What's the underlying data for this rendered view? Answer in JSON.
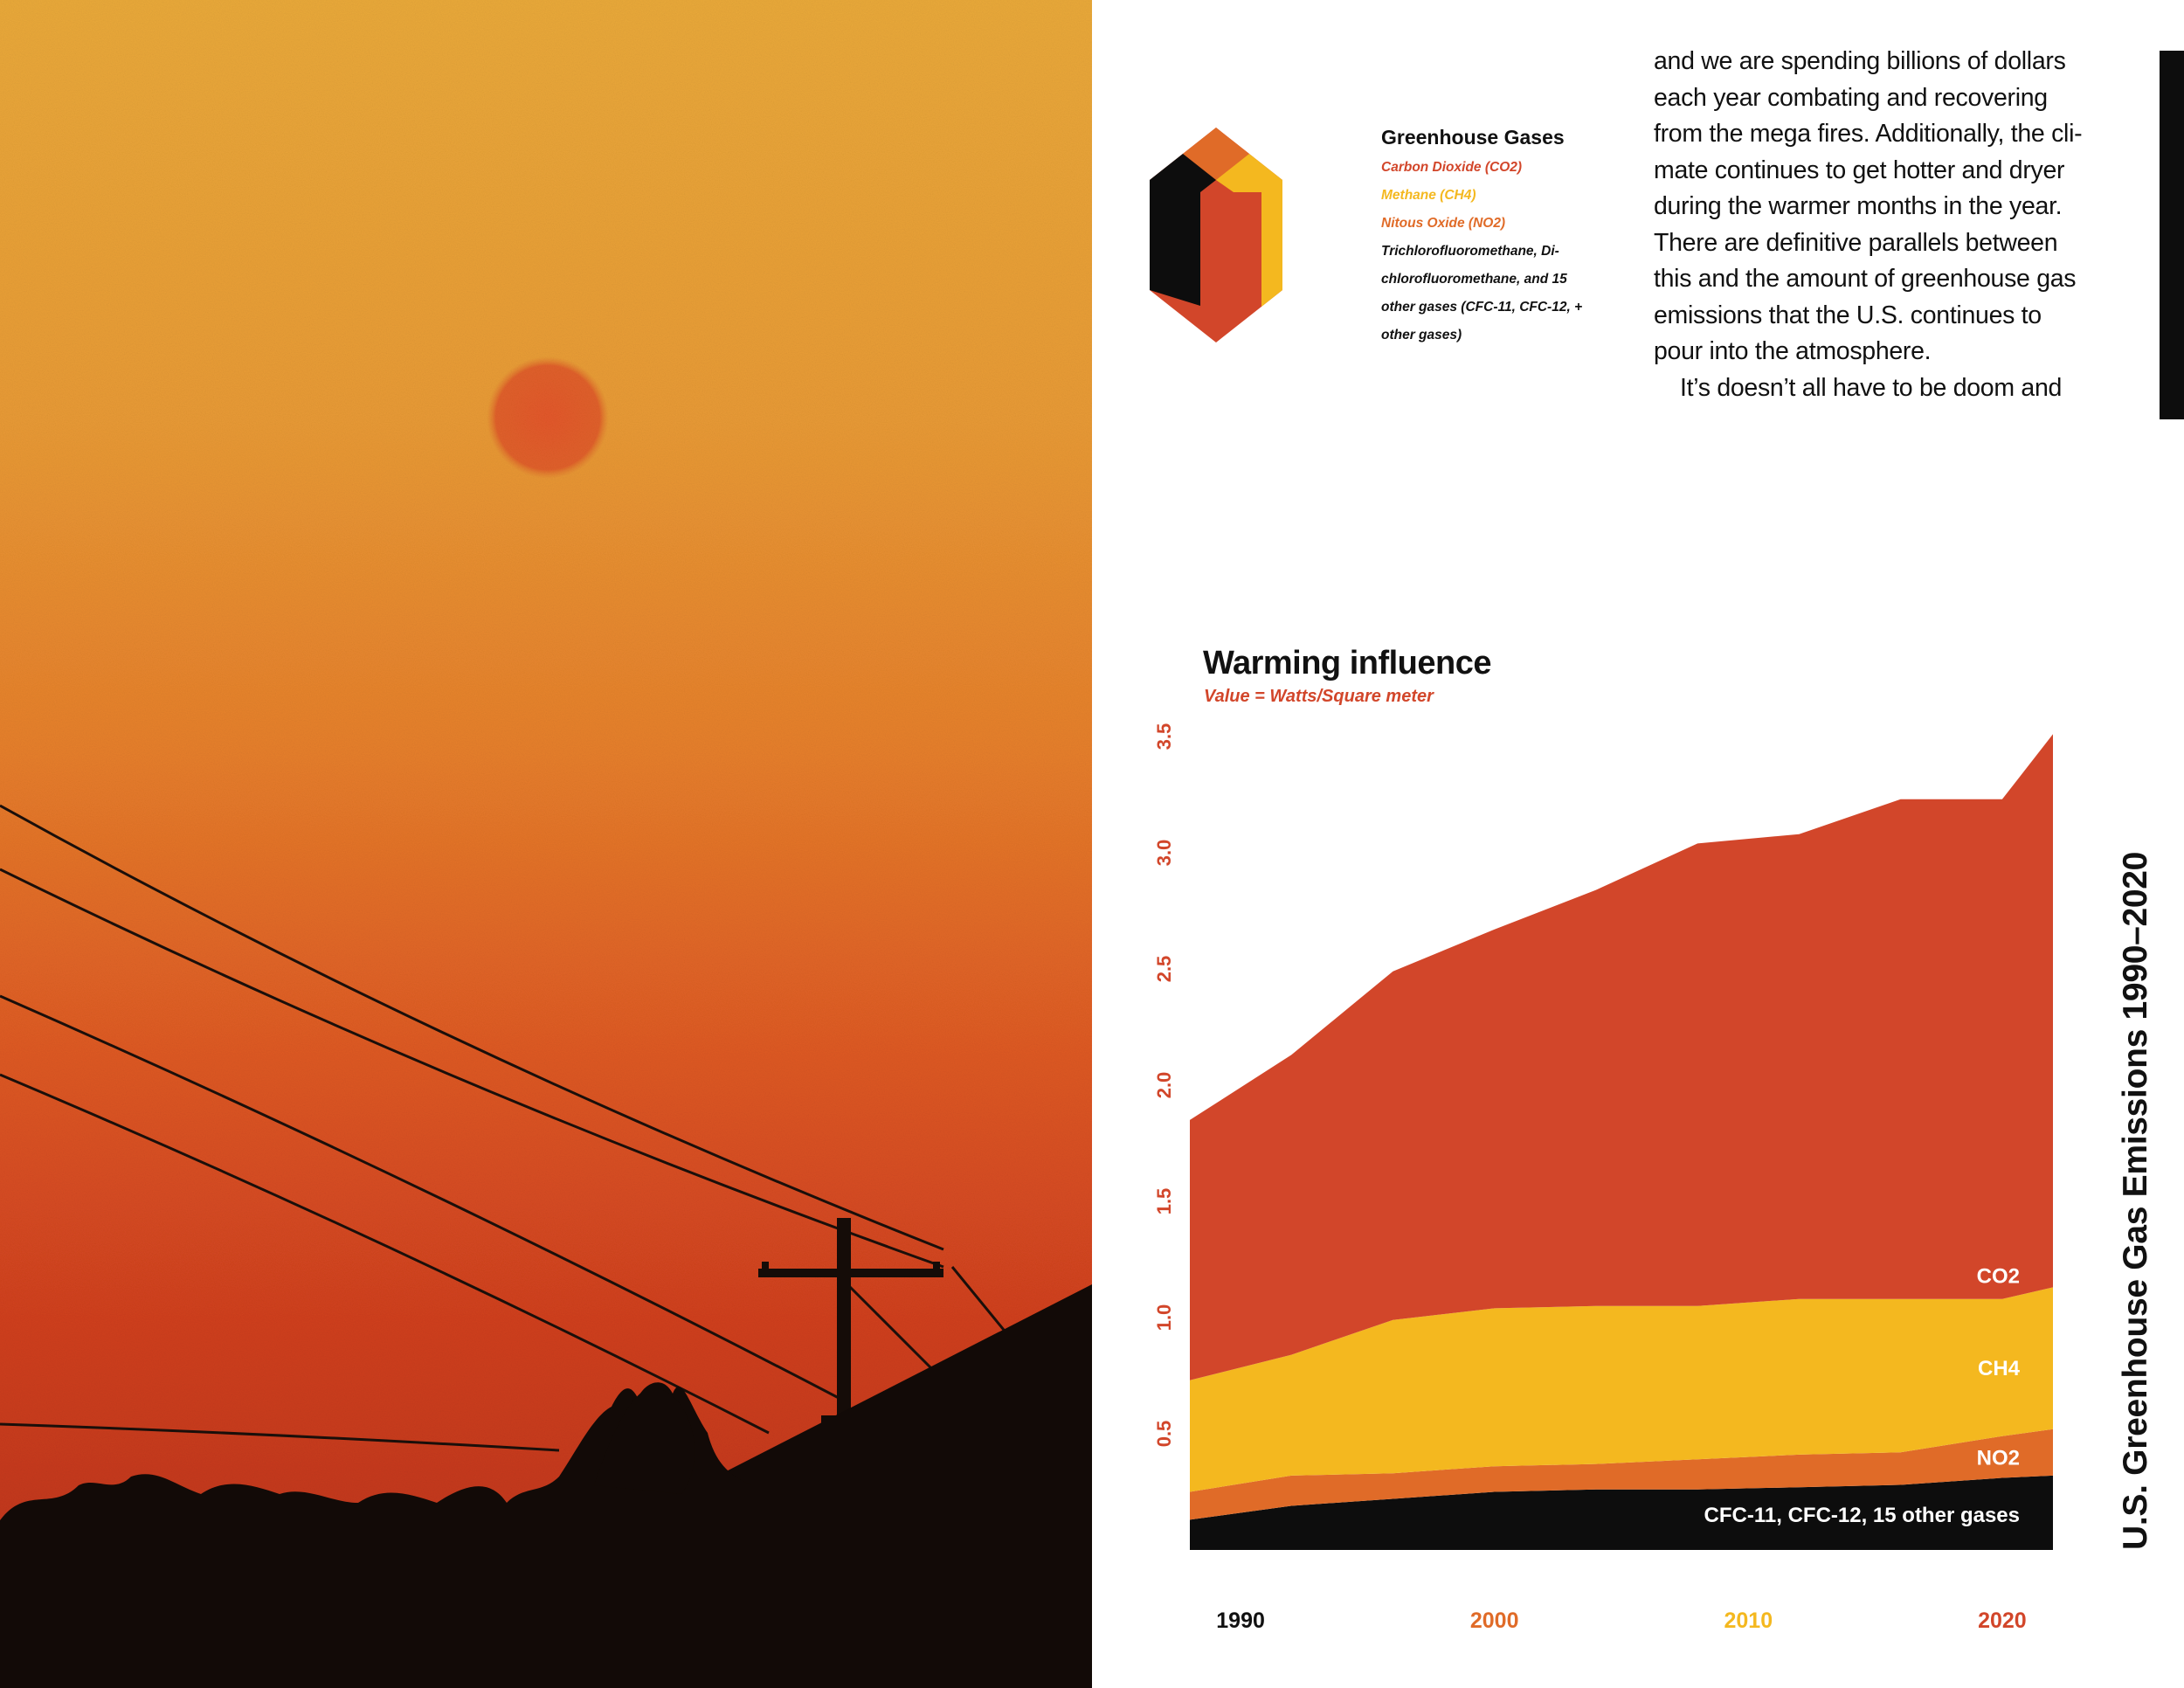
{
  "legend": {
    "title": "Greenhouse Gases",
    "items": [
      {
        "label": "Carbon Dioxide (CO2)",
        "color": "#d2462a"
      },
      {
        "label": "Methane (CH4)",
        "color": "#f4b81f"
      },
      {
        "label": "Nitous Oxide (NO2)",
        "color": "#e06b28"
      }
    ],
    "other_lines": [
      "Trichlorofluoromethane, Di-",
      "chlorofluoromethane, and 15",
      "other gases (CFC-11, CFC-12, +",
      "other gases)"
    ]
  },
  "body_text": {
    "lines": [
      "and we are spending billions of dollars",
      "each year combating and recovering",
      "from the mega fires. Additionally, the cli-",
      "mate continues to get hotter and dryer",
      "during the warmer months in the year.",
      "There are definitive parallels between",
      "this and the amount of greenhouse gas",
      "emissions that the U.S. continues to",
      "pour into the atmosphere."
    ],
    "indented_line": "It’s doesn’t all have to be doom and"
  },
  "chart": {
    "title": "Warming influence",
    "subtitle": "Value = Watts/Square meter",
    "side_title": "U.S. Greenhouse Gas Emissions 1990–2020"
  },
  "chart_data": {
    "type": "area",
    "stacked": true,
    "x": [
      1989,
      1993,
      1997,
      2001,
      2005,
      2009,
      2013,
      2017,
      2021,
      2023
    ],
    "xlim": [
      1989,
      2023
    ],
    "ylim": [
      0,
      3.5
    ],
    "y_ticks": [
      "0.5",
      "1.0",
      "1.5",
      "2.0",
      "2.5",
      "3.0",
      "3.5"
    ],
    "x_ticks": [
      {
        "label": "1990",
        "value": 1991,
        "color": "#111111"
      },
      {
        "label": "2000",
        "value": 2001,
        "color": "#e06b28"
      },
      {
        "label": "2010",
        "value": 2011,
        "color": "#f4b81f"
      },
      {
        "label": "2020",
        "value": 2021,
        "color": "#d2462a"
      }
    ],
    "series": [
      {
        "name": "CFC-11, CFC-12, 15 other gases",
        "color": "#0d0d0d",
        "values": [
          0.13,
          0.19,
          0.22,
          0.25,
          0.26,
          0.26,
          0.27,
          0.28,
          0.31,
          0.32
        ]
      },
      {
        "name": "NO2",
        "color": "#e06b28",
        "values": [
          0.12,
          0.13,
          0.11,
          0.11,
          0.11,
          0.13,
          0.14,
          0.14,
          0.18,
          0.2
        ]
      },
      {
        "name": "CH4",
        "color": "#f4b81f",
        "values": [
          0.48,
          0.52,
          0.66,
          0.68,
          0.68,
          0.66,
          0.67,
          0.66,
          0.59,
          0.61
        ]
      },
      {
        "name": "CO2",
        "color": "#d2462a",
        "values": [
          1.12,
          1.29,
          1.5,
          1.63,
          1.79,
          1.99,
          2.0,
          2.15,
          2.15,
          2.38
        ]
      }
    ]
  }
}
